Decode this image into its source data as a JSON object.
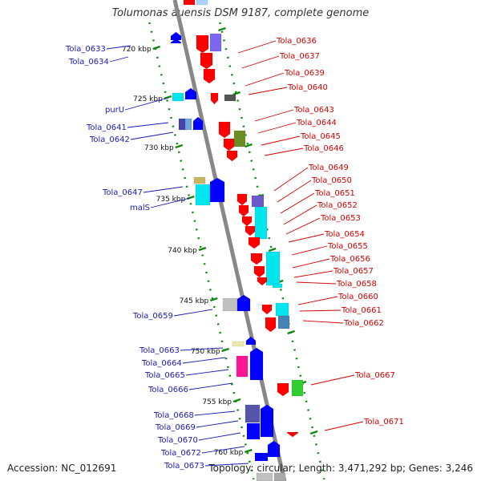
{
  "title": "Tolumonas auensis DSM 9187, complete genome",
  "footer": {
    "accession": "Accession: NC_012691",
    "summary": "Topology: circular; Length: 3,471,292 bp; Genes: 3,246"
  },
  "scale_ticks": [
    "720 kbp",
    "725 kbp",
    "730 kbp",
    "735 kbp",
    "740 kbp",
    "745 kbp",
    "750 kbp",
    "755 kbp",
    "760 kbp"
  ],
  "left_labels": [
    "Tola_0633",
    "Tola_0634",
    "purU",
    "Tola_0641",
    "Tola_0642",
    "Tola_0647",
    "malS",
    "Tola_0659",
    "Tola_0663",
    "Tola_0664",
    "Tola_0665",
    "Tola_0666",
    "Tola_0668",
    "Tola_0669",
    "Tola_0670",
    "Tola_0672",
    "Tola_0673"
  ],
  "right_labels": [
    "Tola_0636",
    "Tola_0637",
    "Tola_0639",
    "Tola_0640",
    "Tola_0643",
    "Tola_0644",
    "Tola_0645",
    "Tola_0646",
    "Tola_0649",
    "Tola_0650",
    "Tola_0651",
    "Tola_0652",
    "Tola_0653",
    "Tola_0654",
    "Tola_0655",
    "Tola_0656",
    "Tola_0657",
    "Tola_0658",
    "Tola_0660",
    "Tola_0661",
    "Tola_0662",
    "Tola_0667",
    "Tola_0671"
  ],
  "colors": {
    "forward_gene": "#0000ff",
    "reverse_gene": "#ff0000",
    "cyan_feature": "#00e5ee",
    "backbone": "#888888",
    "tick": "#118811"
  }
}
